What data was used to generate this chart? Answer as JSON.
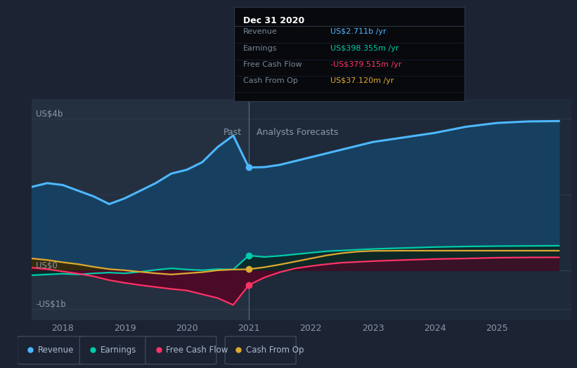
{
  "bg_color": "#1c2333",
  "plot_bg_color": "#1e2a3a",
  "past_bg_color": "#243040",
  "text_color": "#8899aa",
  "title_text": "Dec 31 2020",
  "tooltip": {
    "title": "Dec 31 2020",
    "bg": "#08090d",
    "border": "#2a3545",
    "rows": [
      {
        "label": "Revenue",
        "value": "US$2.711b /yr",
        "vcolor": "#4db8ff",
        "suffix_color": "#8899aa"
      },
      {
        "label": "Earnings",
        "value": "US$398.355m /yr",
        "vcolor": "#00ccaa",
        "suffix_color": "#8899aa"
      },
      {
        "label": "Free Cash Flow",
        "value": "-US$379.515m /yr",
        "vcolor": "#ff3366",
        "suffix_color": "#8899aa"
      },
      {
        "label": "Cash From Op",
        "value": "US$37.120m /yr",
        "vcolor": "#ddaa33",
        "suffix_color": "#8899aa"
      }
    ]
  },
  "past_label": "Past",
  "forecast_label": "Analysts Forecasts",
  "ylabel_top": "US$4b",
  "ylabel_zero": "US$0",
  "ylabel_bottom": "-US$1b",
  "years": [
    2017.5,
    2017.75,
    2018.0,
    2018.25,
    2018.5,
    2018.75,
    2019.0,
    2019.25,
    2019.5,
    2019.75,
    2020.0,
    2020.25,
    2020.5,
    2020.75,
    2021.0,
    2021.25,
    2021.5,
    2021.75,
    2022.0,
    2022.25,
    2022.5,
    2022.75,
    2023.0,
    2023.5,
    2024.0,
    2024.5,
    2025.0,
    2025.5,
    2026.0
  ],
  "revenue": [
    2.2,
    2.3,
    2.25,
    2.1,
    1.95,
    1.75,
    1.9,
    2.1,
    2.3,
    2.55,
    2.65,
    2.85,
    3.25,
    3.55,
    2.711,
    2.72,
    2.78,
    2.88,
    2.98,
    3.08,
    3.18,
    3.28,
    3.38,
    3.5,
    3.62,
    3.78,
    3.88,
    3.92,
    3.93
  ],
  "earnings": [
    -0.12,
    -0.1,
    -0.08,
    -0.1,
    -0.07,
    -0.05,
    -0.07,
    -0.03,
    0.02,
    0.06,
    0.03,
    0.01,
    0.04,
    0.03,
    0.398,
    0.36,
    0.39,
    0.43,
    0.47,
    0.51,
    0.53,
    0.55,
    0.57,
    0.595,
    0.62,
    0.635,
    0.645,
    0.65,
    0.655
  ],
  "free_cash_flow": [
    0.08,
    0.04,
    -0.02,
    -0.08,
    -0.15,
    -0.25,
    -0.32,
    -0.38,
    -0.43,
    -0.48,
    -0.52,
    -0.62,
    -0.72,
    -0.9,
    -0.379,
    -0.18,
    -0.04,
    0.06,
    0.12,
    0.17,
    0.21,
    0.23,
    0.25,
    0.28,
    0.305,
    0.32,
    0.34,
    0.348,
    0.35
  ],
  "cash_from_op": [
    0.32,
    0.28,
    0.22,
    0.17,
    0.1,
    0.04,
    0.01,
    -0.03,
    -0.07,
    -0.1,
    -0.07,
    -0.04,
    0.01,
    0.03,
    0.037,
    0.09,
    0.16,
    0.24,
    0.32,
    0.4,
    0.46,
    0.5,
    0.52,
    0.525,
    0.525,
    0.525,
    0.525,
    0.525,
    0.525
  ],
  "split_year": 2021.0,
  "revenue_color": "#4db8ff",
  "earnings_color": "#00ccaa",
  "fcf_color": "#ff3366",
  "cop_color": "#ddaa33",
  "revenue_fill": "#174060",
  "fcf_fill": "#4a0a28",
  "xticks": [
    2018,
    2019,
    2020,
    2021,
    2022,
    2023,
    2024,
    2025
  ],
  "xlim": [
    2017.5,
    2026.2
  ],
  "ylim": [
    -1.3,
    4.5
  ]
}
